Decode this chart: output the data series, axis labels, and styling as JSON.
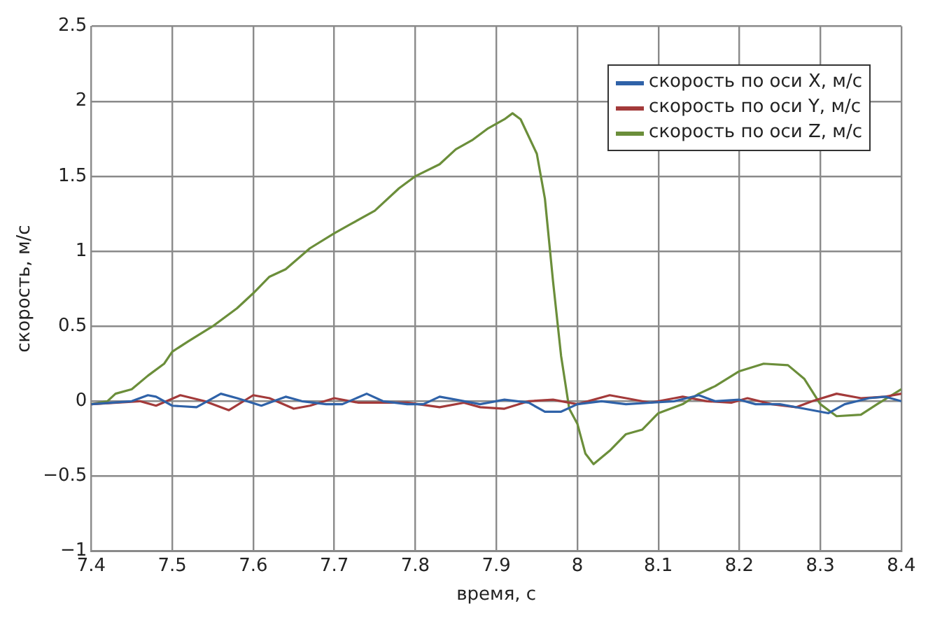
{
  "chart_data": {
    "type": "line",
    "xlabel": "время, с",
    "ylabel": "скорость, м/с",
    "xlim": [
      7.4,
      8.4
    ],
    "xticks": [
      7.4,
      7.5,
      7.6,
      7.7,
      7.8,
      7.9,
      8,
      8.1,
      8.2,
      8.3,
      8.4
    ],
    "ylim": [
      -1,
      2.5
    ],
    "yticks": [
      {
        "value": -1,
        "label": "−1"
      },
      {
        "value": -0.5,
        "label": "−0.5"
      },
      0,
      0.5,
      1,
      1.5,
      2,
      2.5
    ],
    "grid": true,
    "legend": "top right",
    "marker": "none",
    "line_style": "solid",
    "series": [
      {
        "name": "скорость по оси X, м/с",
        "color": "#2f62a8",
        "x": [
          7.4,
          7.45,
          7.47,
          7.48,
          7.5,
          7.53,
          7.56,
          7.58,
          7.61,
          7.64,
          7.66,
          7.69,
          7.71,
          7.74,
          7.76,
          7.79,
          7.81,
          7.83,
          7.85,
          7.88,
          7.91,
          7.94,
          7.96,
          7.98,
          8.0,
          8.03,
          8.06,
          8.09,
          8.12,
          8.15,
          8.17,
          8.2,
          8.22,
          8.25,
          8.28,
          8.31,
          8.33,
          8.36,
          8.38,
          8.4
        ],
        "values": [
          -0.02,
          0,
          0.04,
          0.03,
          -0.03,
          -0.04,
          0.05,
          0.02,
          -0.03,
          0.03,
          0,
          -0.02,
          -0.02,
          0.05,
          0,
          -0.02,
          -0.02,
          0.03,
          0.01,
          -0.02,
          0.01,
          -0.01,
          -0.07,
          -0.07,
          -0.02,
          0,
          -0.02,
          -0.01,
          0,
          0.04,
          0,
          0.01,
          -0.02,
          -0.02,
          -0.05,
          -0.08,
          -0.02,
          0.02,
          0.03,
          0
        ]
      },
      {
        "name": "скорость по оси Y, м/с",
        "color": "#a33a3a",
        "x": [
          7.4,
          7.46,
          7.48,
          7.51,
          7.54,
          7.57,
          7.6,
          7.62,
          7.65,
          7.67,
          7.7,
          7.73,
          7.76,
          7.79,
          7.83,
          7.86,
          7.88,
          7.91,
          7.94,
          7.97,
          8.0,
          8.04,
          8.06,
          8.09,
          8.12,
          8.13,
          8.16,
          8.19,
          8.21,
          8.24,
          8.27,
          8.29,
          8.32,
          8.35,
          8.38,
          8.4
        ],
        "values": [
          -0.02,
          0,
          -0.03,
          0.04,
          0,
          -0.06,
          0.04,
          0.02,
          -0.05,
          -0.03,
          0.02,
          -0.01,
          -0.01,
          -0.01,
          -0.04,
          -0.01,
          -0.04,
          -0.05,
          0,
          0.01,
          -0.02,
          0.04,
          0.02,
          -0.01,
          0.02,
          0.03,
          0,
          -0.01,
          0.02,
          -0.02,
          -0.04,
          0,
          0.05,
          0.02,
          0.03,
          0.05
        ]
      },
      {
        "name": "скорость по оси Z, м/с",
        "color": "#6b8e3a",
        "x": [
          7.4,
          7.42,
          7.43,
          7.45,
          7.47,
          7.49,
          7.5,
          7.52,
          7.55,
          7.58,
          7.6,
          7.62,
          7.64,
          7.67,
          7.7,
          7.72,
          7.75,
          7.78,
          7.8,
          7.83,
          7.85,
          7.87,
          7.89,
          7.91,
          7.92,
          7.93,
          7.95,
          7.96,
          7.97,
          7.98,
          7.99,
          8.0,
          8.01,
          8.02,
          8.04,
          8.06,
          8.08,
          8.1,
          8.13,
          8.15,
          8.17,
          8.2,
          8.23,
          8.26,
          8.28,
          8.3,
          8.32,
          8.35,
          8.37,
          8.4
        ],
        "values": [
          -0.02,
          0,
          0.05,
          0.08,
          0.17,
          0.25,
          0.33,
          0.4,
          0.5,
          0.62,
          0.72,
          0.83,
          0.88,
          1.02,
          1.12,
          1.18,
          1.27,
          1.42,
          1.5,
          1.58,
          1.68,
          1.74,
          1.82,
          1.88,
          1.92,
          1.88,
          1.65,
          1.35,
          0.8,
          0.3,
          -0.05,
          -0.15,
          -0.35,
          -0.42,
          -0.33,
          -0.22,
          -0.19,
          -0.08,
          -0.02,
          0.05,
          0.1,
          0.2,
          0.25,
          0.24,
          0.15,
          -0.02,
          -0.1,
          -0.09,
          -0.02,
          0.08
        ]
      }
    ]
  }
}
